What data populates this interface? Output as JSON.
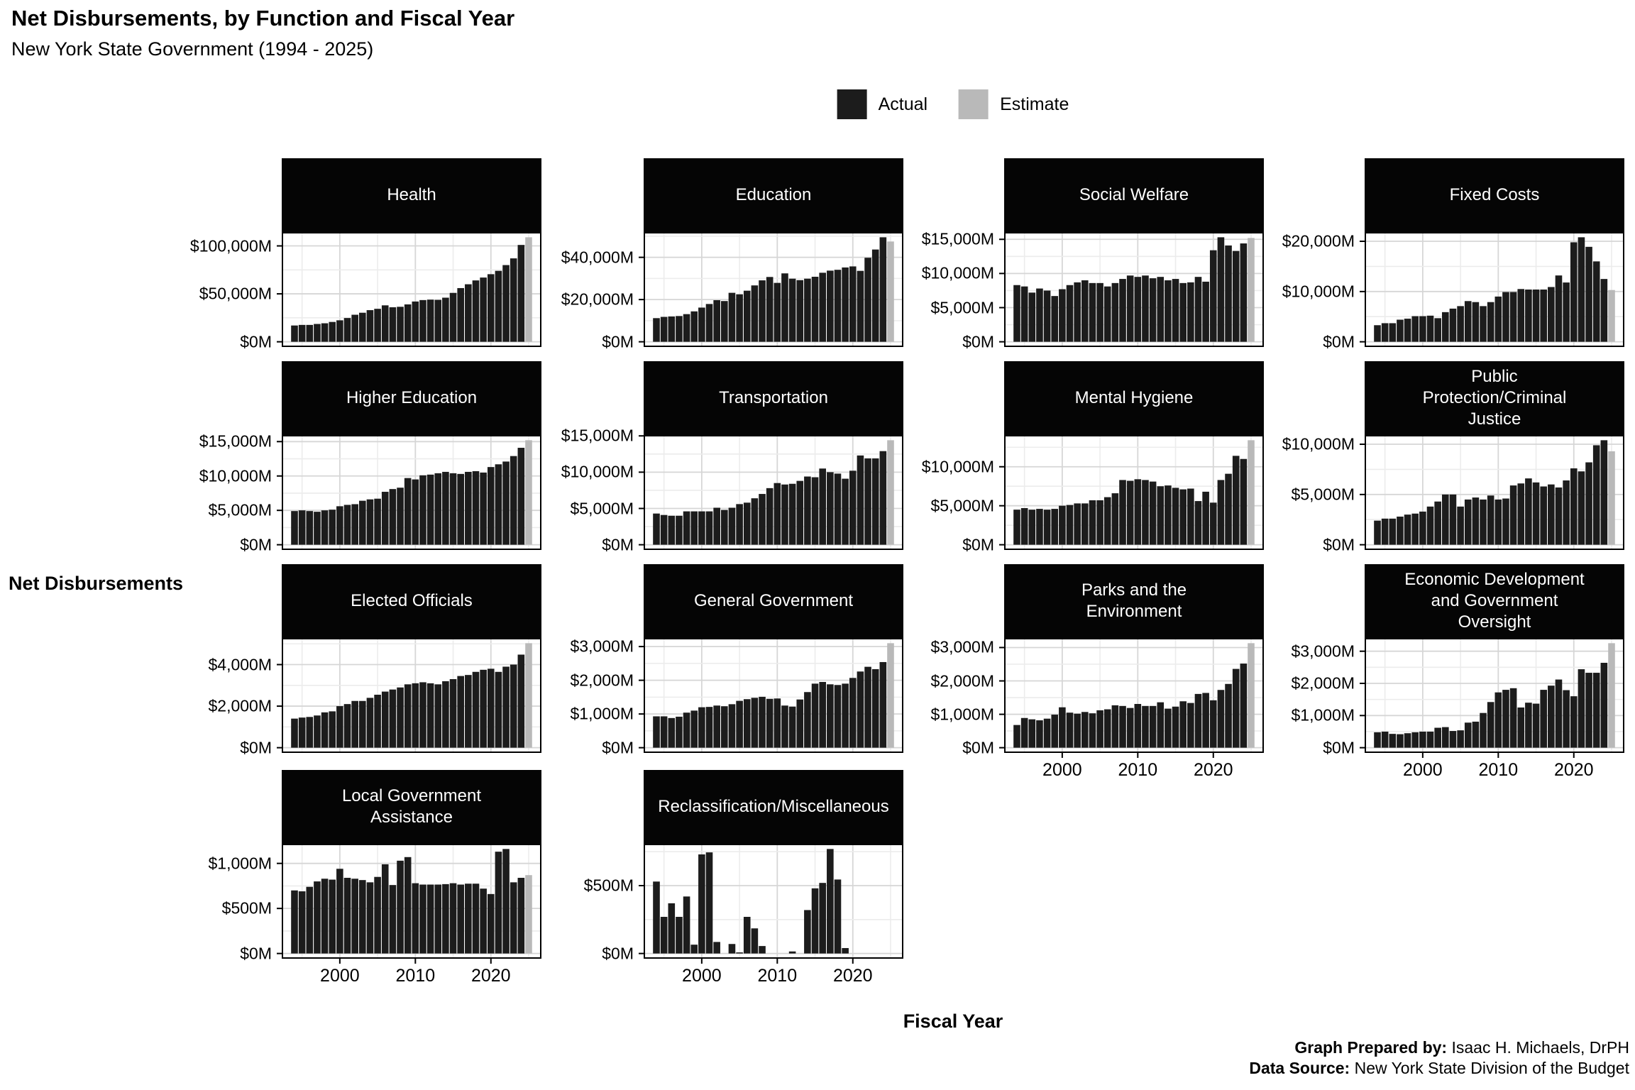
{
  "header": {
    "title": "Net Disbursements, by Function and Fiscal Year",
    "subtitle": "New York State Government (1994 - 2025)"
  },
  "legend": {
    "actual_label": "Actual",
    "estimate_label": "Estimate",
    "actual_color": "#1c1c1c",
    "estimate_color": "#b9b9b9"
  },
  "axis": {
    "y_title": "Net Disbursements",
    "x_title": "Fiscal Year"
  },
  "caption": {
    "prepared_by_label": "Graph Prepared by:",
    "prepared_by_value": " Isaac H. Michaels, DrPH",
    "source_label": "Data Source:",
    "source_value": " New York State Division of the Budget"
  },
  "chart_data": {
    "type": "bar",
    "title": "Net Disbursements, by Function and Fiscal Year",
    "xlabel": "Fiscal Year",
    "ylabel": "Net Disbursements",
    "x_start": 1994,
    "x_end": 2025,
    "x_major_ticks": [
      2000,
      2010,
      2020
    ],
    "x_minor_ticks": [
      1995,
      2005,
      2015,
      2025
    ],
    "estimate_year": 2025,
    "unit": "$M",
    "grid": true,
    "legend_position": "top",
    "facets": [
      {
        "title": "Health",
        "row": 1,
        "col": 1,
        "show_x_axis": false,
        "yticks": [
          0,
          50000,
          100000
        ],
        "values": [
          17000,
          17600,
          17600,
          18600,
          19300,
          20700,
          22400,
          24800,
          28200,
          30300,
          33000,
          34400,
          38000,
          36000,
          36500,
          39000,
          42000,
          43500,
          44000,
          43800,
          46000,
          51000,
          56000,
          60000,
          64000,
          67000,
          70500,
          74000,
          80000,
          87000,
          101000,
          109000
        ]
      },
      {
        "title": "Education",
        "row": 1,
        "col": 2,
        "show_x_axis": false,
        "yticks": [
          0,
          20000,
          40000
        ],
        "values": [
          11200,
          11800,
          12000,
          12200,
          13100,
          14400,
          16200,
          17900,
          19700,
          19300,
          23200,
          22500,
          24200,
          26700,
          29100,
          30700,
          27900,
          32400,
          29900,
          29200,
          29900,
          30800,
          32700,
          33700,
          34100,
          35200,
          35700,
          33600,
          39800,
          43700,
          49500,
          47500
        ]
      },
      {
        "title": "Social Welfare",
        "row": 1,
        "col": 3,
        "show_x_axis": false,
        "yticks": [
          0,
          5000,
          10000,
          15000
        ],
        "values": [
          8300,
          8100,
          7200,
          7800,
          7500,
          6700,
          7700,
          8300,
          8700,
          9000,
          8600,
          8600,
          8100,
          8600,
          9200,
          9700,
          9500,
          9700,
          9300,
          9500,
          9000,
          9200,
          8600,
          8700,
          9500,
          8800,
          13400,
          15300,
          14100,
          13300,
          14400,
          15200
        ]
      },
      {
        "title": "Fixed Costs",
        "row": 1,
        "col": 4,
        "show_x_axis": false,
        "yticks": [
          0,
          10000,
          20000
        ],
        "values": [
          3300,
          3700,
          3700,
          4400,
          4600,
          5100,
          5100,
          5200,
          4700,
          5900,
          6600,
          7100,
          8100,
          7900,
          7100,
          7900,
          9000,
          9900,
          9900,
          10500,
          10400,
          10400,
          10400,
          10900,
          13200,
          11800,
          19800,
          20800,
          18900,
          16000,
          12500,
          10300
        ]
      },
      {
        "title": "Higher Education",
        "row": 2,
        "col": 1,
        "show_x_axis": false,
        "yticks": [
          0,
          5000,
          10000,
          15000
        ],
        "values": [
          4900,
          5000,
          4900,
          4800,
          5000,
          5100,
          5600,
          5800,
          5900,
          6400,
          6600,
          6700,
          7700,
          8100,
          8300,
          9700,
          9500,
          10100,
          10200,
          10400,
          10600,
          10400,
          10300,
          10600,
          10700,
          10500,
          11300,
          11700,
          12100,
          12900,
          14100,
          15200
        ]
      },
      {
        "title": "Transportation",
        "row": 2,
        "col": 2,
        "show_x_axis": false,
        "yticks": [
          0,
          5000,
          10000,
          15000
        ],
        "values": [
          4300,
          4100,
          4000,
          4000,
          4600,
          4600,
          4600,
          4600,
          5100,
          4800,
          5100,
          5600,
          5800,
          6400,
          7000,
          7800,
          8500,
          8300,
          8400,
          8800,
          9400,
          9300,
          10500,
          10000,
          9800,
          9100,
          10200,
          12300,
          11900,
          11900,
          12900,
          14400
        ]
      },
      {
        "title": "Mental Hygiene",
        "row": 2,
        "col": 3,
        "show_x_axis": false,
        "yticks": [
          0,
          5000,
          10000
        ],
        "values": [
          4500,
          4700,
          4500,
          4600,
          4500,
          4600,
          5000,
          5100,
          5300,
          5300,
          5700,
          5700,
          6100,
          6600,
          8300,
          8200,
          8400,
          8300,
          8100,
          7500,
          7600,
          7300,
          7100,
          7200,
          5600,
          6800,
          5400,
          8300,
          9100,
          11400,
          11000,
          13400
        ]
      },
      {
        "title": "Public\nProtection/Criminal\nJustice",
        "row": 2,
        "col": 4,
        "show_x_axis": false,
        "yticks": [
          0,
          5000,
          10000
        ],
        "values": [
          2400,
          2600,
          2600,
          2800,
          3000,
          3100,
          3300,
          3800,
          4300,
          5000,
          5000,
          3800,
          4500,
          4700,
          4500,
          4900,
          4500,
          4600,
          5900,
          6100,
          6600,
          6200,
          5800,
          6000,
          5700,
          6400,
          7600,
          7300,
          8200,
          9900,
          10400,
          9300
        ]
      },
      {
        "title": "Elected Officials",
        "row": 3,
        "col": 1,
        "show_x_axis": false,
        "yticks": [
          0,
          2000,
          4000
        ],
        "values": [
          1400,
          1450,
          1480,
          1550,
          1700,
          1750,
          2000,
          2100,
          2250,
          2250,
          2400,
          2550,
          2700,
          2800,
          2900,
          3050,
          3100,
          3150,
          3100,
          3050,
          3200,
          3300,
          3450,
          3500,
          3650,
          3750,
          3800,
          3650,
          3900,
          4000,
          4480,
          5030
        ]
      },
      {
        "title": "General Government",
        "row": 3,
        "col": 2,
        "show_x_axis": false,
        "yticks": [
          0,
          1000,
          2000,
          3000
        ],
        "values": [
          930,
          930,
          880,
          920,
          1040,
          1100,
          1200,
          1210,
          1250,
          1230,
          1290,
          1390,
          1440,
          1480,
          1510,
          1450,
          1460,
          1250,
          1220,
          1430,
          1650,
          1900,
          1950,
          1880,
          1860,
          1900,
          2070,
          2260,
          2400,
          2330,
          2540,
          3100
        ]
      },
      {
        "title": "Parks and the\nEnvironment",
        "row": 3,
        "col": 3,
        "show_x_axis": true,
        "yticks": [
          0,
          1000,
          2000,
          3000
        ],
        "values": [
          680,
          890,
          850,
          820,
          870,
          990,
          1210,
          1050,
          1020,
          1070,
          1030,
          1120,
          1150,
          1270,
          1250,
          1190,
          1310,
          1250,
          1250,
          1360,
          1170,
          1230,
          1390,
          1340,
          1610,
          1640,
          1420,
          1730,
          1910,
          2360,
          2520,
          3130
        ]
      },
      {
        "title": "Economic Development\nand Government\nOversight",
        "row": 3,
        "col": 4,
        "show_x_axis": true,
        "yticks": [
          0,
          1000,
          2000,
          3000
        ],
        "values": [
          480,
          500,
          430,
          420,
          450,
          480,
          500,
          500,
          620,
          640,
          520,
          540,
          780,
          810,
          1080,
          1420,
          1720,
          1800,
          1850,
          1250,
          1400,
          1370,
          1800,
          1930,
          2120,
          1790,
          1600,
          2440,
          2330,
          2330,
          2640,
          3250
        ]
      },
      {
        "title": "Local Government\nAssistance",
        "row": 4,
        "col": 1,
        "show_x_axis": true,
        "yticks": [
          0,
          500,
          1000
        ],
        "values": [
          700,
          690,
          740,
          800,
          830,
          820,
          940,
          840,
          830,
          815,
          790,
          850,
          990,
          760,
          1030,
          1070,
          780,
          765,
          765,
          765,
          770,
          780,
          765,
          775,
          775,
          720,
          660,
          1130,
          1160,
          790,
          840,
          870
        ]
      },
      {
        "title": "Reclassification/Miscellaneous",
        "row": 4,
        "col": 2,
        "show_x_axis": true,
        "yticks": [
          0,
          500
        ],
        "values": [
          530,
          270,
          370,
          270,
          420,
          65,
          730,
          745,
          85,
          0,
          70,
          8,
          270,
          185,
          55,
          0,
          0,
          0,
          15,
          0,
          320,
          480,
          520,
          770,
          545,
          40,
          0,
          0,
          0,
          0,
          0,
          0
        ]
      }
    ]
  }
}
